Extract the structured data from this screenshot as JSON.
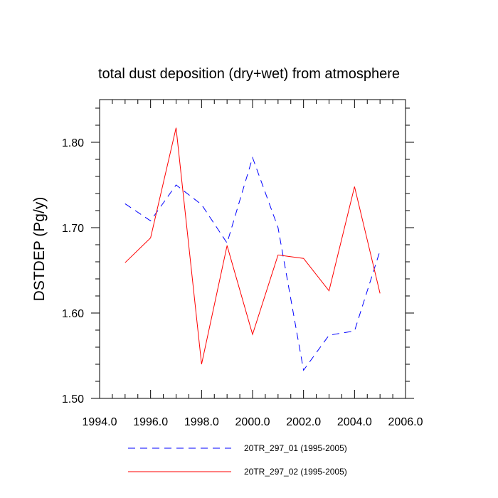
{
  "chart_data": {
    "type": "line",
    "title": "total dust deposition (dry+wet) from atmosphere",
    "xlabel": "",
    "ylabel": "DSTDEP  (Pg/y)",
    "xlim": [
      1994,
      2006
    ],
    "ylim": [
      1.5,
      1.85
    ],
    "x_ticks": [
      "1994.0",
      "1996.0",
      "1998.0",
      "2000.0",
      "2002.0",
      "2004.0",
      "2006.0"
    ],
    "y_ticks": [
      "1.50",
      "1.60",
      "1.70",
      "1.80"
    ],
    "x": [
      1995,
      1996,
      1997,
      1998,
      1999,
      2000,
      2001,
      2002,
      2003,
      2004,
      2005
    ],
    "series": [
      {
        "name": "20TR_297_01 (1995-2005)",
        "color": "#0000ff",
        "style": "dashed",
        "values": [
          1.728,
          1.708,
          1.75,
          1.727,
          1.682,
          1.782,
          1.7,
          1.533,
          1.574,
          1.579,
          1.673
        ]
      },
      {
        "name": "20TR_297_02 (1995-2005)",
        "color": "#ff0000",
        "style": "solid",
        "values": [
          1.659,
          1.688,
          1.817,
          1.54,
          1.679,
          1.575,
          1.668,
          1.664,
          1.626,
          1.748,
          1.623
        ]
      }
    ],
    "grid": false,
    "legend_position": "bottom"
  }
}
